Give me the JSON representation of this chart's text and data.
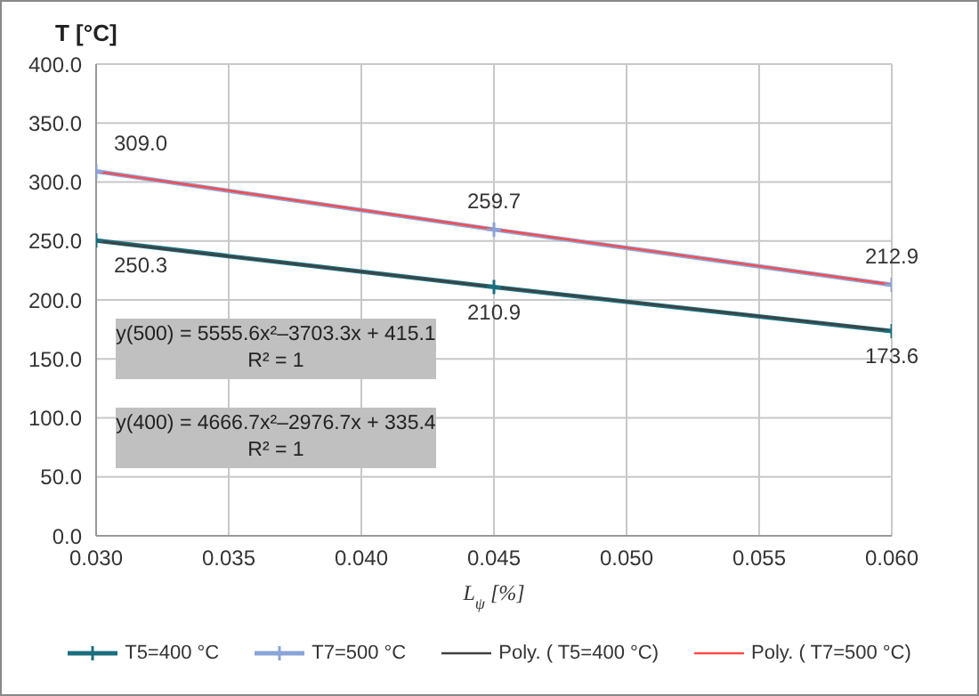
{
  "chart_data": {
    "type": "line",
    "ylabel": "T [°C]",
    "xlabel": "L$_{ψ}$ [%]",
    "xlim": [
      0.03,
      0.06
    ],
    "xticks": [
      {
        "value": 0.03,
        "label": "0.030"
      },
      {
        "value": 0.035,
        "label": "0.035"
      },
      {
        "value": 0.04,
        "label": "0.040"
      },
      {
        "value": 0.045,
        "label": "0.045"
      },
      {
        "value": 0.05,
        "label": "0.050"
      },
      {
        "value": 0.055,
        "label": "0.055"
      },
      {
        "value": 0.06,
        "label": "0.060"
      }
    ],
    "ylim": [
      0,
      400
    ],
    "yticks": [
      {
        "value": 0,
        "label": "0.0"
      },
      {
        "value": 50,
        "label": "50.0"
      },
      {
        "value": 100,
        "label": "100.0"
      },
      {
        "value": 150,
        "label": "150.0"
      },
      {
        "value": 200,
        "label": "200.0"
      },
      {
        "value": 250,
        "label": "250.0"
      },
      {
        "value": 300,
        "label": "300.0"
      },
      {
        "value": 350,
        "label": "350.0"
      },
      {
        "value": 400,
        "label": "400.0"
      }
    ],
    "grid": true,
    "legend": "bottom",
    "marker": "cross",
    "line_style": "solid",
    "series": [
      {
        "name": "T5=400 °C",
        "color": "#1b6e7e",
        "x": [
          0.03,
          0.045,
          0.06
        ],
        "values": [
          250.3,
          210.9,
          173.6
        ],
        "value_labels": [
          "250.3",
          "210.9",
          "173.6"
        ]
      },
      {
        "name": "T7=500 °C",
        "color": "#8aa4d8",
        "x": [
          0.03,
          0.045,
          0.06
        ],
        "values": [
          309.0,
          259.7,
          212.9
        ],
        "value_labels": [
          "309.0",
          "259.7",
          "212.9"
        ]
      },
      {
        "name": "Poly. ( T5=400 °C)",
        "type": "line",
        "color": "#404040",
        "x": [
          0.03,
          0.045,
          0.06
        ],
        "values": [
          250,
          211,
          174
        ],
        "marker": "none"
      },
      {
        "name": "Poly. ( T7=500 °C)",
        "type": "line",
        "color": "#ff4a4a",
        "x": [
          0.03,
          0.045,
          0.06
        ],
        "values": [
          309,
          260,
          213
        ],
        "marker": "none"
      }
    ],
    "annotations": [
      "y(500) = 5555.6x²–3703.3x + 415.1\nR² = 1",
      "y(400) = 4666.7x²–2976.7x + 335.4\nR² = 1"
    ]
  }
}
